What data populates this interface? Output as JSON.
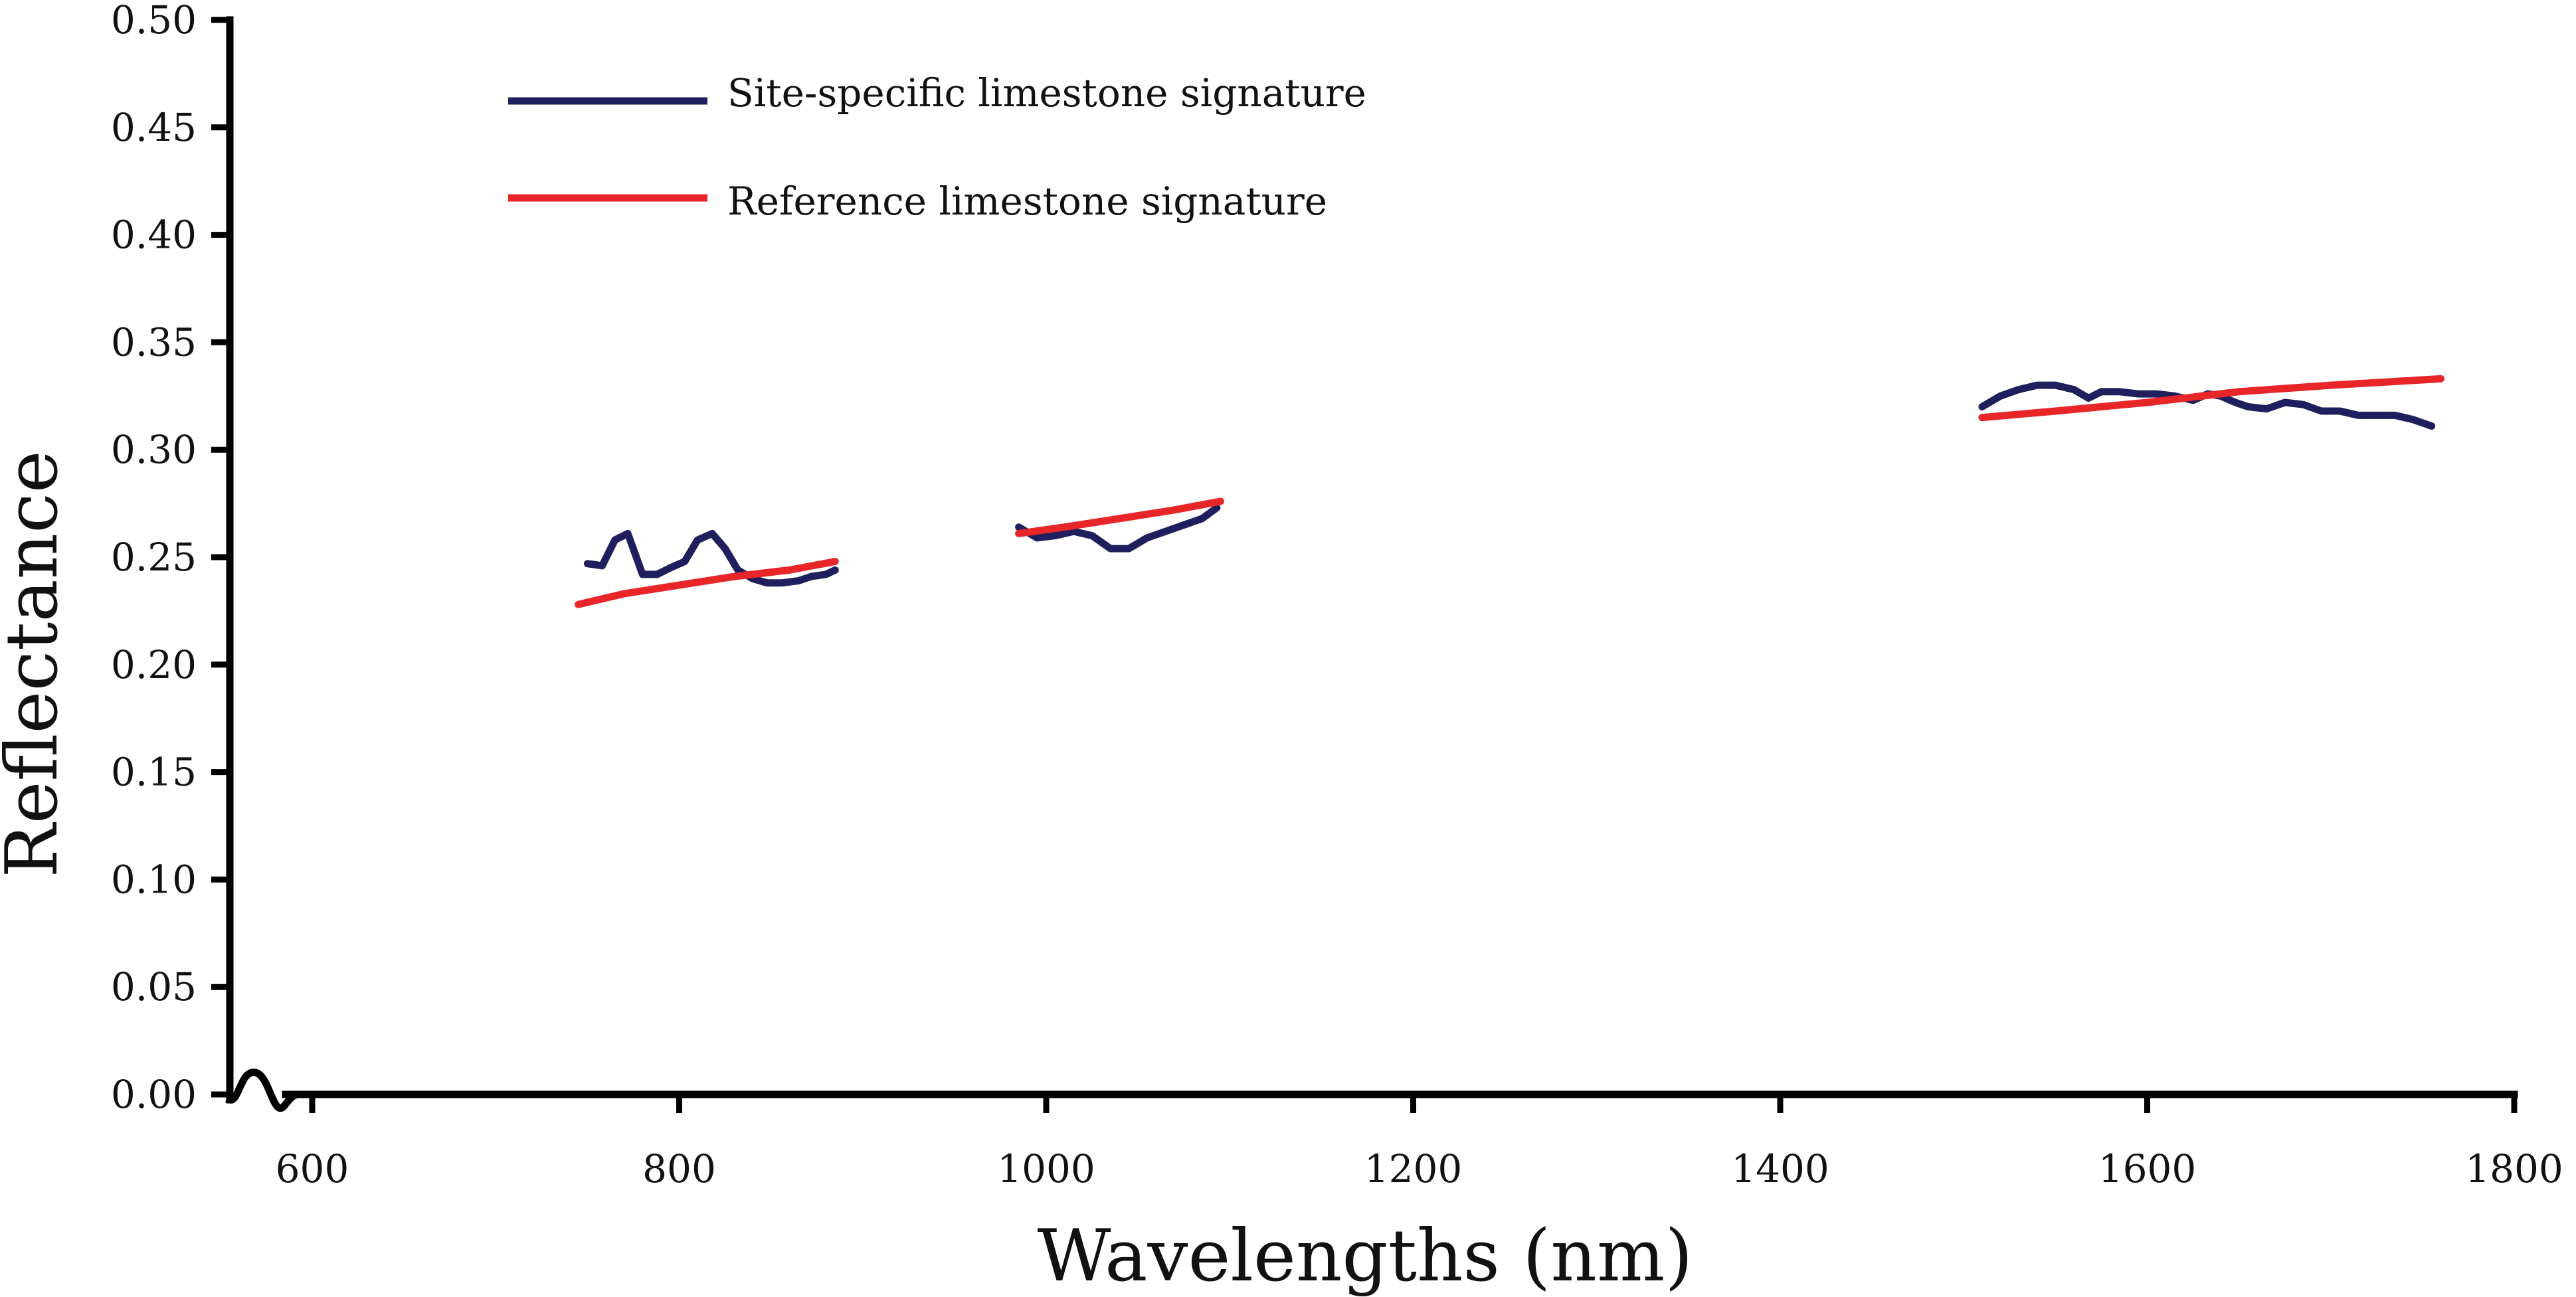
{
  "chart_data": {
    "type": "line",
    "title": "",
    "xlabel": "Wavelengths (nm)",
    "ylabel": "Reflectance",
    "xlim": [
      560,
      1800
    ],
    "ylim": [
      0,
      0.5
    ],
    "grid": false,
    "legend_position": "top-left",
    "x_ticks": [
      600,
      800,
      1000,
      1200,
      1400,
      1600,
      1800
    ],
    "x_tick_labels": [
      "600",
      "800",
      "1000",
      "1200",
      "1400",
      "1600",
      "1800"
    ],
    "y_ticks": [
      0,
      0.05,
      0.1,
      0.15,
      0.2,
      0.25,
      0.3,
      0.35,
      0.4,
      0.45,
      0.5
    ],
    "y_tick_labels": [
      "0.00",
      "0.05",
      "0.10",
      "0.15",
      "0.20",
      "0.25",
      "0.30",
      "0.35",
      "0.40",
      "0.45",
      "0.50"
    ],
    "axis_break": "x-axis break near origin",
    "series": [
      {
        "name": "Site-specific limestone signature",
        "color": "#1f1f5e",
        "segments": [
          {
            "x": [
              750,
              758,
              765,
              772,
              780,
              788,
              795,
              803,
              810,
              818,
              825,
              832,
              840,
              848,
              856,
              865,
              872,
              880,
              885
            ],
            "y": [
              0.247,
              0.246,
              0.258,
              0.261,
              0.242,
              0.242,
              0.245,
              0.248,
              0.258,
              0.261,
              0.254,
              0.244,
              0.24,
              0.238,
              0.238,
              0.239,
              0.241,
              0.242,
              0.244
            ]
          },
          {
            "x": [
              985,
              995,
              1005,
              1015,
              1025,
              1035,
              1045,
              1055,
              1065,
              1075,
              1085,
              1093
            ],
            "y": [
              0.264,
              0.259,
              0.26,
              0.262,
              0.26,
              0.254,
              0.254,
              0.259,
              0.262,
              0.265,
              0.268,
              0.273
            ]
          },
          {
            "x": [
              1510,
              1520,
              1530,
              1540,
              1550,
              1560,
              1568,
              1575,
              1585,
              1595,
              1605,
              1615,
              1625,
              1633,
              1640,
              1648,
              1655,
              1665,
              1675,
              1685,
              1695,
              1705,
              1715,
              1725,
              1735,
              1745,
              1755
            ],
            "y": [
              0.32,
              0.325,
              0.328,
              0.33,
              0.33,
              0.328,
              0.324,
              0.327,
              0.327,
              0.326,
              0.326,
              0.325,
              0.323,
              0.326,
              0.325,
              0.322,
              0.32,
              0.319,
              0.322,
              0.321,
              0.318,
              0.318,
              0.316,
              0.316,
              0.316,
              0.314,
              0.311
            ]
          }
        ]
      },
      {
        "name": "Reference limestone signature",
        "color": "#e8262a",
        "segments": [
          {
            "x": [
              745,
              770,
              800,
              830,
              860,
              885
            ],
            "y": [
              0.228,
              0.233,
              0.237,
              0.241,
              0.244,
              0.248
            ]
          },
          {
            "x": [
              985,
              1010,
              1040,
              1070,
              1095
            ],
            "y": [
              0.261,
              0.264,
              0.268,
              0.272,
              0.276
            ]
          },
          {
            "x": [
              1510,
              1550,
              1600,
              1650,
              1700,
              1740,
              1760
            ],
            "y": [
              0.315,
              0.318,
              0.322,
              0.327,
              0.33,
              0.332,
              0.333
            ]
          }
        ]
      }
    ]
  }
}
